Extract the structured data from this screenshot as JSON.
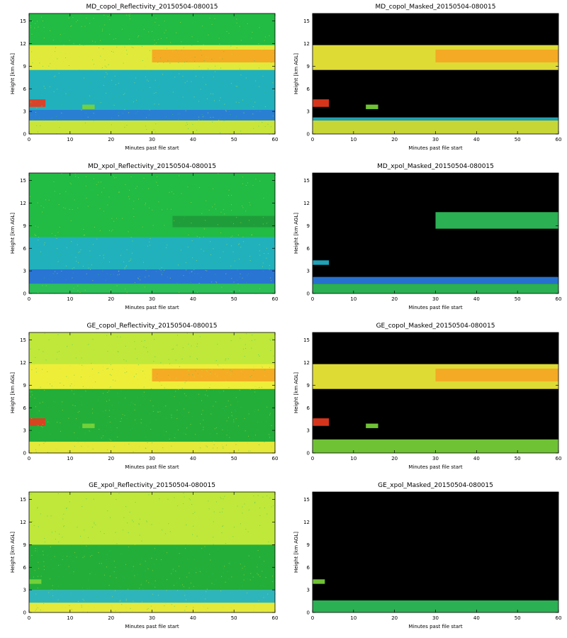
{
  "chart_data": [
    {
      "type": "heatmap",
      "title": "MD_copol_Reflectivity_20150504-080015",
      "xlabel": "Minutes past file start",
      "ylabel": "Height [km AGL]",
      "xlim": [
        0,
        60
      ],
      "ylim": [
        0,
        16
      ],
      "xticks": [
        0,
        10,
        20,
        30,
        40,
        50,
        60
      ],
      "yticks": [
        0,
        3,
        6,
        9,
        12,
        15
      ],
      "masked": false,
      "background": "#22bb44",
      "layers": [
        {
          "feature": "surface clutter",
          "x": [
            0,
            60
          ],
          "y": [
            0,
            1.8
          ],
          "color": "#d8e83a"
        },
        {
          "feature": "low noise",
          "x": [
            0,
            60
          ],
          "y": [
            1.8,
            3.2
          ],
          "color": "#2a7be0"
        },
        {
          "feature": "mid noise",
          "x": [
            0,
            60
          ],
          "y": [
            3.2,
            8.5
          ],
          "color": "#22b0c8"
        },
        {
          "feature": "cirrus layer",
          "x": [
            0,
            60
          ],
          "y": [
            8.5,
            11.8
          ],
          "color": "#f2ee3a"
        },
        {
          "feature": "cloud core",
          "x": [
            30,
            60
          ],
          "y": [
            9.5,
            11.2
          ],
          "color": "#f5a623"
        },
        {
          "feature": "aerosol layer",
          "x": [
            0,
            4
          ],
          "y": [
            3.6,
            4.6
          ],
          "color": "#e83a1e"
        },
        {
          "feature": "small plume",
          "x": [
            13,
            16
          ],
          "y": [
            3.3,
            3.9
          ],
          "color": "#7ad33a"
        }
      ]
    },
    {
      "type": "heatmap",
      "title": "MD_copol_Masked_20150504-080015",
      "xlabel": "Minutes past file start",
      "ylabel": "Height [km AGL]",
      "xlim": [
        0,
        60
      ],
      "ylim": [
        0,
        16
      ],
      "xticks": [
        0,
        10,
        20,
        30,
        40,
        50,
        60
      ],
      "yticks": [
        0,
        3,
        6,
        9,
        12,
        15
      ],
      "masked": true,
      "background": "#000000",
      "layers": [
        {
          "feature": "surface clutter",
          "x": [
            0,
            60
          ],
          "y": [
            0,
            1.8
          ],
          "color": "#d8e83a"
        },
        {
          "feature": "noise edge",
          "x": [
            0,
            60
          ],
          "y": [
            1.8,
            2.2
          ],
          "color": "#22b0c8"
        },
        {
          "feature": "cirrus layer",
          "x": [
            0,
            60
          ],
          "y": [
            8.5,
            11.8
          ],
          "color": "#f2ee3a"
        },
        {
          "feature": "cloud core",
          "x": [
            30,
            60
          ],
          "y": [
            9.5,
            11.2
          ],
          "color": "#f5a623"
        },
        {
          "feature": "aerosol layer",
          "x": [
            0,
            4
          ],
          "y": [
            3.6,
            4.6
          ],
          "color": "#e83a1e"
        },
        {
          "feature": "small plume",
          "x": [
            13,
            16
          ],
          "y": [
            3.3,
            3.9
          ],
          "color": "#7ad33a"
        }
      ]
    },
    {
      "type": "heatmap",
      "title": "MD_xpol_Reflectivity_20150504-080015",
      "xlabel": "Minutes past file start",
      "ylabel": "Height [km AGL]",
      "xlim": [
        0,
        60
      ],
      "ylim": [
        0,
        16
      ],
      "xticks": [
        0,
        10,
        20,
        30,
        40,
        50,
        60
      ],
      "yticks": [
        0,
        3,
        6,
        9,
        12,
        15
      ],
      "masked": false,
      "background": "#22bb44",
      "layers": [
        {
          "feature": "surface clutter",
          "x": [
            0,
            60
          ],
          "y": [
            0,
            1.3
          ],
          "color": "#2fbf5a"
        },
        {
          "feature": "low noise",
          "x": [
            0,
            60
          ],
          "y": [
            1.3,
            3.2
          ],
          "color": "#2a6fe0"
        },
        {
          "feature": "mid noise",
          "x": [
            0,
            60
          ],
          "y": [
            3.2,
            7.5
          ],
          "color": "#22b0c8"
        },
        {
          "feature": "cirrus layer",
          "x": [
            35,
            60
          ],
          "y": [
            8.8,
            10.3
          ],
          "color": "#1f9a3a"
        }
      ]
    },
    {
      "type": "heatmap",
      "title": "MD_xpol_Masked_20150504-080015",
      "xlabel": "Minutes past file start",
      "ylabel": "Height [km AGL]",
      "xlim": [
        0,
        60
      ],
      "ylim": [
        0,
        16
      ],
      "xticks": [
        0,
        10,
        20,
        30,
        40,
        50,
        60
      ],
      "yticks": [
        0,
        3,
        6,
        9,
        12,
        15
      ],
      "masked": true,
      "background": "#000000",
      "layers": [
        {
          "feature": "surface clutter",
          "x": [
            0,
            60
          ],
          "y": [
            0,
            1.3
          ],
          "color": "#2fbf5a"
        },
        {
          "feature": "noise edge",
          "x": [
            0,
            60
          ],
          "y": [
            1.3,
            2.2
          ],
          "color": "#2a7be0"
        },
        {
          "feature": "cirrus layer",
          "x": [
            30,
            60
          ],
          "y": [
            8.6,
            10.8
          ],
          "color": "#2fbf5a"
        },
        {
          "feature": "aerosol layer",
          "x": [
            0,
            4
          ],
          "y": [
            3.8,
            4.4
          ],
          "color": "#22b0c8"
        }
      ]
    },
    {
      "type": "heatmap",
      "title": "GE_copol_Reflectivity_20150504-080015",
      "xlabel": "Minutes past file start",
      "ylabel": "Height [km AGL]",
      "xlim": [
        0,
        60
      ],
      "ylim": [
        0,
        16
      ],
      "xticks": [
        0,
        10,
        20,
        30,
        40,
        50,
        60
      ],
      "yticks": [
        0,
        3,
        6,
        9,
        12,
        15
      ],
      "masked": false,
      "background": "#bfe83a",
      "layers": [
        {
          "feature": "surface clutter",
          "x": [
            0,
            60
          ],
          "y": [
            0,
            1.5
          ],
          "color": "#e8e83a"
        },
        {
          "feature": "low noise",
          "x": [
            0,
            60
          ],
          "y": [
            1.5,
            8.5
          ],
          "color": "#16a83a"
        },
        {
          "feature": "cirrus layer",
          "x": [
            0,
            60
          ],
          "y": [
            8.5,
            11.8
          ],
          "color": "#f2ee3a"
        },
        {
          "feature": "cloud core",
          "x": [
            30,
            60
          ],
          "y": [
            9.5,
            11.2
          ],
          "color": "#f5a623"
        },
        {
          "feature": "aerosol layer",
          "x": [
            0,
            4
          ],
          "y": [
            3.6,
            4.6
          ],
          "color": "#e83a1e"
        },
        {
          "feature": "small plume",
          "x": [
            13,
            16
          ],
          "y": [
            3.3,
            3.9
          ],
          "color": "#7ad33a"
        }
      ]
    },
    {
      "type": "heatmap",
      "title": "GE_copol_Masked_20150504-080015",
      "xlabel": "Minutes past file start",
      "ylabel": "Height [km AGL]",
      "xlim": [
        0,
        60
      ],
      "ylim": [
        0,
        16
      ],
      "xticks": [
        0,
        10,
        20,
        30,
        40,
        50,
        60
      ],
      "yticks": [
        0,
        3,
        6,
        9,
        12,
        15
      ],
      "masked": true,
      "background": "#000000",
      "layers": [
        {
          "feature": "surface clutter",
          "x": [
            0,
            60
          ],
          "y": [
            0,
            1.8
          ],
          "color": "#7ad33a"
        },
        {
          "feature": "cirrus layer",
          "x": [
            0,
            60
          ],
          "y": [
            8.5,
            11.8
          ],
          "color": "#f2ee3a"
        },
        {
          "feature": "cloud core",
          "x": [
            30,
            60
          ],
          "y": [
            9.5,
            11.2
          ],
          "color": "#f5a623"
        },
        {
          "feature": "aerosol layer",
          "x": [
            0,
            4
          ],
          "y": [
            3.6,
            4.6
          ],
          "color": "#e83a1e"
        },
        {
          "feature": "small plume",
          "x": [
            13,
            16
          ],
          "y": [
            3.3,
            3.9
          ],
          "color": "#7ad33a"
        }
      ]
    },
    {
      "type": "heatmap",
      "title": "GE_xpol_Reflectivity_20150504-080015",
      "xlabel": "Minutes past file start",
      "ylabel": "Height [km AGL]",
      "xlim": [
        0,
        60
      ],
      "ylim": [
        0,
        16
      ],
      "xticks": [
        0,
        10,
        20,
        30,
        40,
        50,
        60
      ],
      "yticks": [
        0,
        3,
        6,
        9,
        12,
        15
      ],
      "masked": false,
      "background": "#bfe83a",
      "layers": [
        {
          "feature": "surface clutter",
          "x": [
            0,
            60
          ],
          "y": [
            0,
            1.3
          ],
          "color": "#e8e83a"
        },
        {
          "feature": "low noise",
          "x": [
            0,
            60
          ],
          "y": [
            1.3,
            3.0
          ],
          "color": "#22b0c8"
        },
        {
          "feature": "mid noise",
          "x": [
            0,
            60
          ],
          "y": [
            3.0,
            9.0
          ],
          "color": "#16a83a"
        },
        {
          "feature": "aerosol layer",
          "x": [
            0,
            3
          ],
          "y": [
            3.8,
            4.4
          ],
          "color": "#7ad33a"
        }
      ]
    },
    {
      "type": "heatmap",
      "title": "GE_xpol_Masked_20150504-080015",
      "xlabel": "Minutes past file start",
      "ylabel": "Height [km AGL]",
      "xlim": [
        0,
        60
      ],
      "ylim": [
        0,
        16
      ],
      "xticks": [
        0,
        10,
        20,
        30,
        40,
        50,
        60
      ],
      "yticks": [
        0,
        3,
        6,
        9,
        12,
        15
      ],
      "masked": true,
      "background": "#000000",
      "layers": [
        {
          "feature": "surface clutter",
          "x": [
            0,
            60
          ],
          "y": [
            0,
            1.6
          ],
          "color": "#2fbf5a"
        },
        {
          "feature": "aerosol layer",
          "x": [
            0,
            3
          ],
          "y": [
            3.8,
            4.4
          ],
          "color": "#7ad33a"
        }
      ]
    }
  ]
}
